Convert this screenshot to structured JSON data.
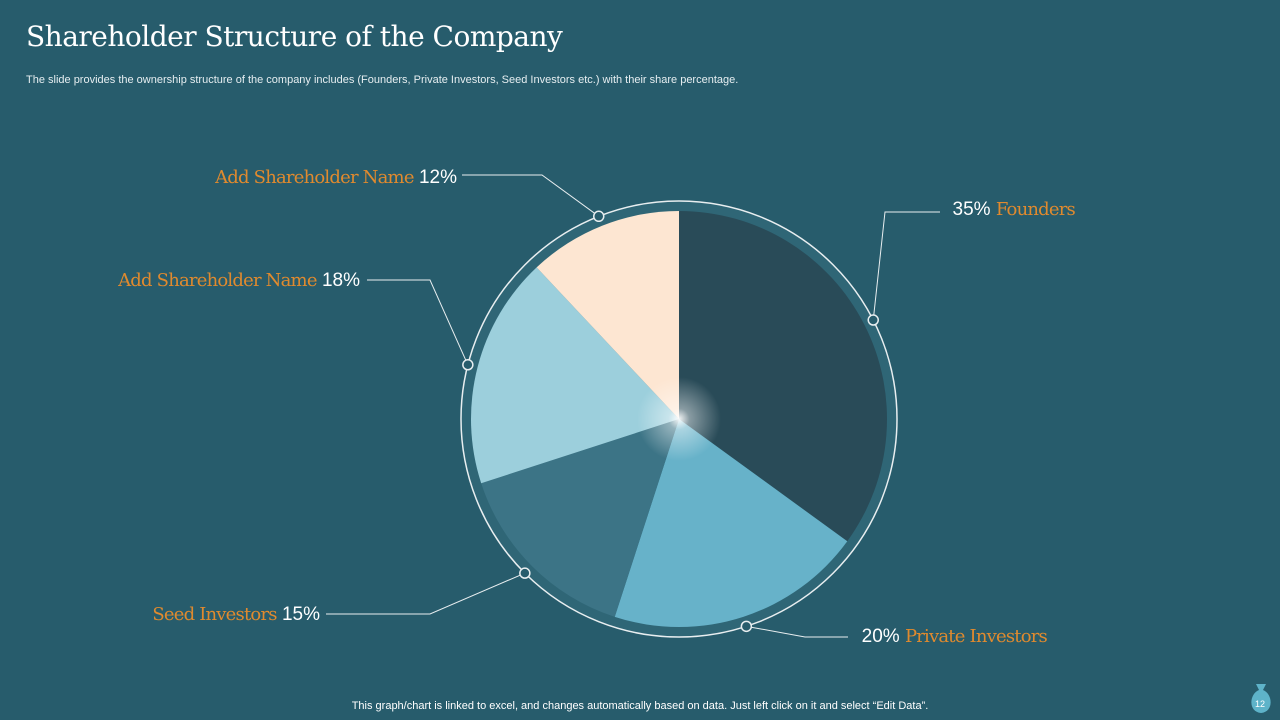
{
  "slide": {
    "title": "Shareholder Structure of the Company",
    "subtitle": "The slide provides the ownership structure of the company includes (Founders, Private Investors, Seed Investors etc.) with their share percentage.",
    "footer": "This graph/chart is linked to excel, and changes automatically based on data. Just left click on it and select “Edit Data”.",
    "page_number": "12"
  },
  "colors": {
    "background": "#275c6c",
    "label_accent": "#e08a2e"
  },
  "chart_data": {
    "type": "pie",
    "start_angle_deg": 0,
    "direction": "clockwise",
    "slices": [
      {
        "name": "Founders",
        "value": 35,
        "label": "35%",
        "color": "#294b58"
      },
      {
        "name": "Private Investors",
        "value": 20,
        "label": "20%",
        "color": "#67b2c9"
      },
      {
        "name": "Seed Investors",
        "value": 15,
        "label": "15%",
        "color": "#3c7486"
      },
      {
        "name": "Add Shareholder Name",
        "value": 18,
        "label": "18%",
        "color": "#9ccfdc"
      },
      {
        "name": "Add Shareholder Name",
        "value": 12,
        "label": "12%",
        "color": "#fde6d2"
      }
    ]
  }
}
